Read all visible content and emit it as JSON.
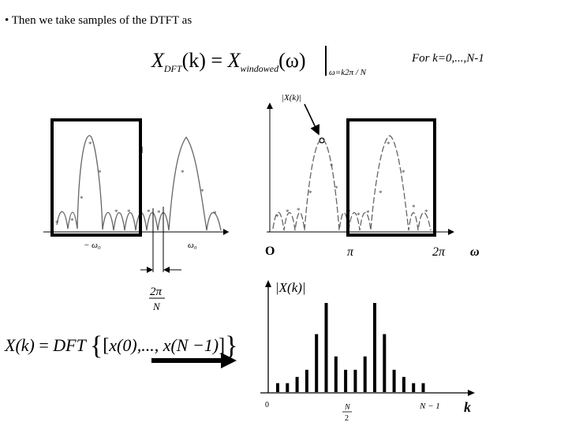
{
  "slide": {
    "bullet": "•",
    "heading": "Then we take samples of the DTFT as",
    "note": "For k=0,...,N-1"
  },
  "formula_top": {
    "lhs_base": "X",
    "lhs_sub": "DFT",
    "lhs_arg": "(k)",
    "equals": "=",
    "rhs_base": "X",
    "rhs_sub": "windowed",
    "rhs_arg": "(ω)",
    "eval_sub": "ω=k2π / N"
  },
  "formula_bottom": {
    "lhs": "X(k)",
    "equals": "=",
    "fn": "DFT",
    "args": "x(0),..., x(N −1)"
  },
  "left_plot": {
    "neg_label": "− ω₀",
    "pos_label": "ω₀",
    "spacing_num": "2π",
    "spacing_den": "N"
  },
  "right_plot": {
    "y_label": "|X(k)|",
    "origin": "O",
    "pi": "π",
    "two_pi": "2π",
    "omega": "ω"
  },
  "stem_plot": {
    "y_label": "|X(k)|",
    "zero": "0",
    "half_num": "N",
    "half_den": "2",
    "last": "N − 1",
    "k": "k",
    "stems": [
      0.1,
      0.1,
      0.17,
      0.25,
      0.65,
      1.0,
      0.4,
      0.25,
      0.25,
      0.4,
      1.0,
      0.65,
      0.25,
      0.17,
      0.1,
      0.1
    ]
  }
}
